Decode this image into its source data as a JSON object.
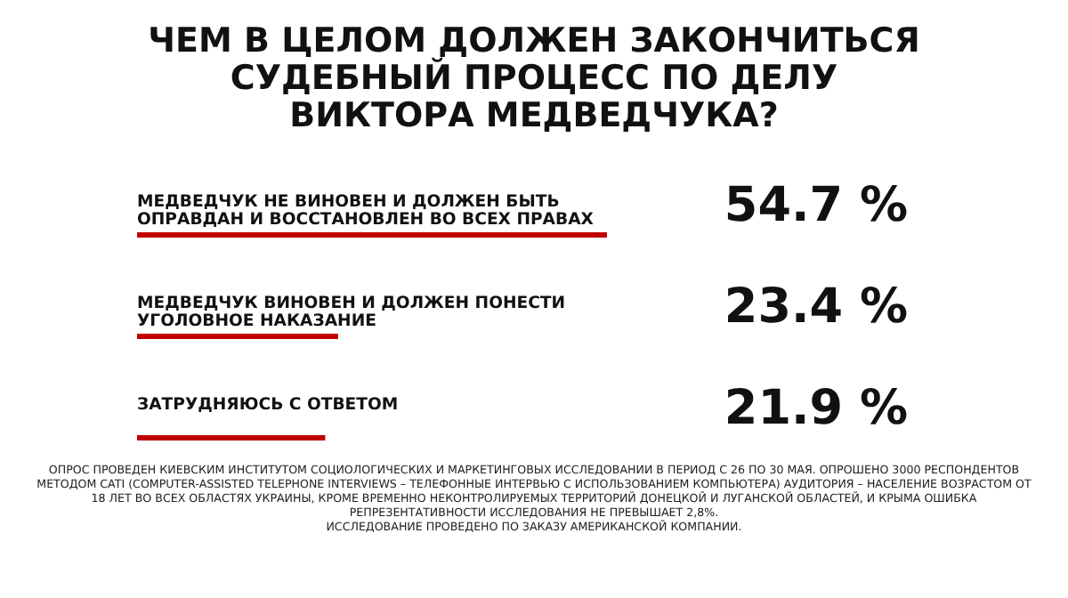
{
  "chart_data": {
    "type": "bar",
    "orientation": "horizontal",
    "title": "ЧЕМ В ЦЕЛОМ ДОЛЖЕН ЗАКОНЧИТЬСЯ СУДЕБНЫЙ ПРОЦЕСС ПО ДЕЛУ ВИКТОРА МЕДВЕДЧУКА?",
    "categories": [
      "МЕДВЕДЧУК НЕ ВИНОВЕН И ДОЛЖЕН БЫТЬ ОПРАВДАН И ВОССТАНОВЛЕН ВО ВСЕХ ПРАВАХ",
      "МЕДВЕДЧУК ВИНОВЕН И ДОЛЖЕН ПОНЕСТИ УГОЛОВНОЕ НАКАЗАНИЕ",
      "ЗАТРУДНЯЮСЬ С ОТВЕТОМ"
    ],
    "values": [
      54.7,
      23.4,
      21.9
    ],
    "value_labels": [
      "54.7 %",
      "23.4 %",
      "21.9 %"
    ],
    "color": "#c00000",
    "annotations": [
      "ОПРОС ПРОВЕДЕН КИЕВСКИМ ИНСТИТУТОМ СОЦИОЛОГИЧЕСКИХ И МАРКЕТИНГОВЫХ ИССЛЕДОВАНИЙ В ПЕРИОД С 26 ПО 30 МАЯ. ОПРОШЕНО 3000 РЕСПОНДЕНТОВ МЕТОДОМ CATI (COMPUTER-ASSISTED TELEPHONE INTERVIEWS – ТЕЛЕФОННЫЕ ИНТЕРВЬЮ С ИСПОЛЬЗОВАНИЕМ КОМПЬЮТЕРА) АУДИТОРИЯ – НАСЕЛЕНИЕ ВОЗРАСТОМ ОТ 18 ЛЕТ ВО ВСЕХ ОБЛАСТЯХ УКРАИНЫ, КРОМЕ ВРЕМЕННО НЕКОНТРОЛИРУЕМЫХ ТЕРРИТОРИЙ ДОНЕЦКОЙ И ЛУГАНСКОЙ ОБЛАСТЕЙ, И КРЫМА ОШИБКА РЕПРЕЗЕНТАТИВНОСТИ ИССЛЕДОВАНИЯ НЕ ПРЕВЫШАЕТ 2,8%.",
      "ИССЛЕДОВАНИЕ ПРОВЕДЕНО ПО ЗАКАЗУ АМЕРИКАНСКОЙ КОМПАНИИ."
    ]
  }
}
